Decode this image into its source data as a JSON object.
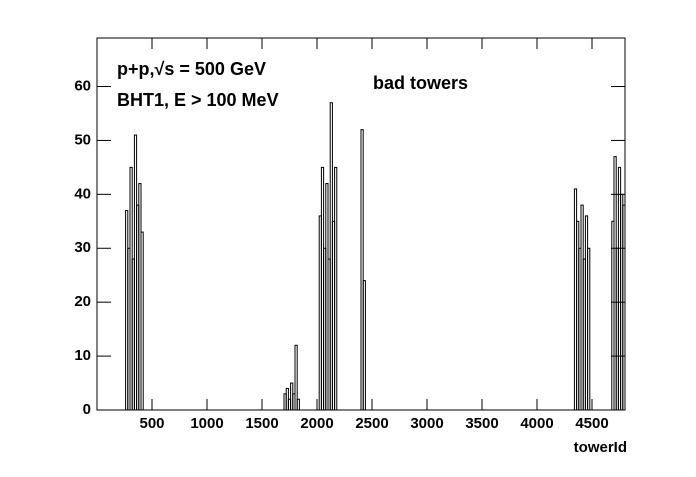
{
  "chart_data": {
    "type": "histogram",
    "title": "bad towers",
    "annotations": [
      "p+p,√s = 500 GeV",
      "BHT1, E > 100 MeV"
    ],
    "x_label": "towerId",
    "bins": [
      0,
      260,
      280,
      300,
      320,
      340,
      360,
      380,
      400,
      420,
      1700,
      1720,
      1740,
      1760,
      1780,
      1800,
      1820,
      1840,
      2020,
      2040,
      2060,
      2080,
      2100,
      2120,
      2140,
      2160,
      2180,
      2400,
      2420,
      2440,
      4340,
      4360,
      4380,
      4400,
      4420,
      4440,
      4460,
      4480,
      4680,
      4700,
      4720,
      4740,
      4760,
      4780,
      4800
    ],
    "values": [
      0,
      37,
      30,
      45,
      28,
      51,
      38,
      42,
      33,
      0,
      3,
      4,
      2,
      5,
      3,
      12,
      2,
      0,
      36,
      45,
      30,
      42,
      28,
      57,
      35,
      45,
      0,
      52,
      24,
      0,
      41,
      35,
      30,
      38,
      28,
      36,
      30,
      0,
      35,
      47,
      30,
      45,
      40,
      38
    ],
    "color": "#000000",
    "xlim": [
      0,
      4800
    ],
    "ylim": [
      0,
      69
    ],
    "xticks": [
      500,
      1000,
      1500,
      2000,
      2500,
      3000,
      3500,
      4000,
      4500
    ],
    "yticks": [
      0,
      10,
      20,
      30,
      40,
      50,
      60
    ]
  }
}
